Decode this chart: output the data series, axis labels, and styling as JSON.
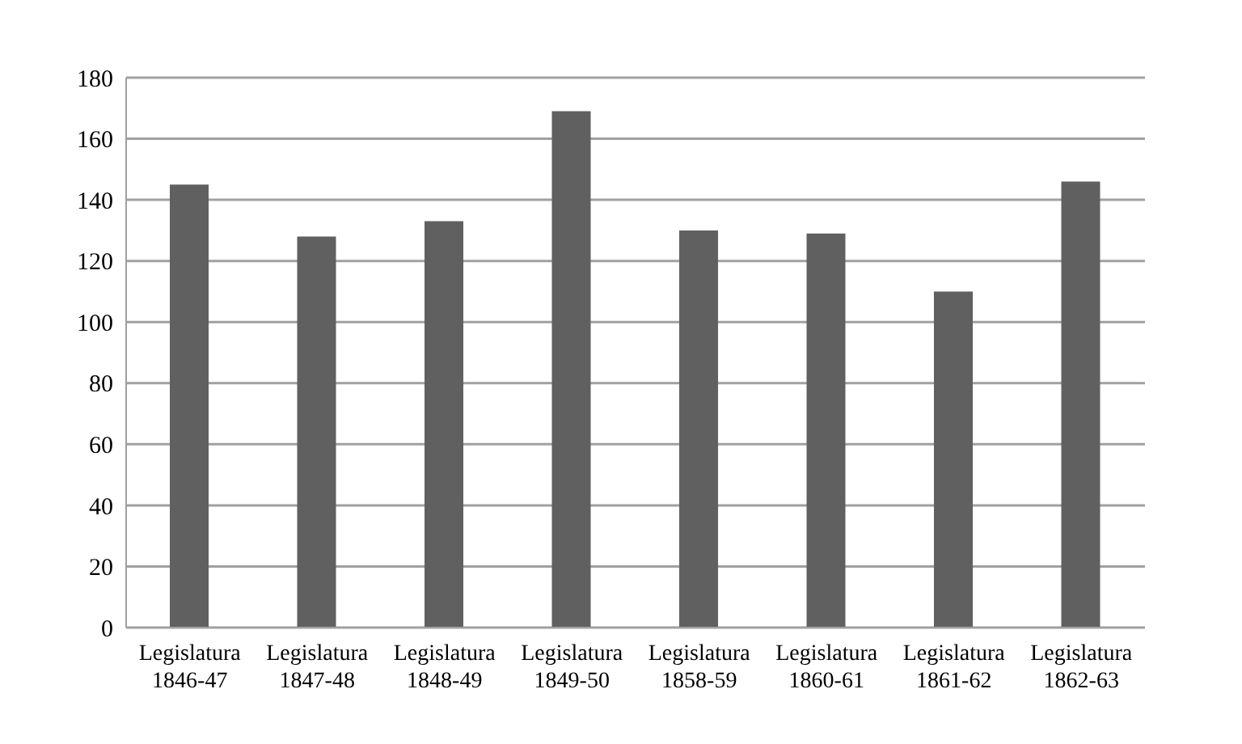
{
  "chart_data": {
    "type": "bar",
    "categories": [
      "Legislatura 1846-47",
      "Legislatura 1847-48",
      "Legislatura 1848-49",
      "Legislatura 1849-50",
      "Legislatura 1858-59",
      "Legislatura 1860-61",
      "Legislatura 1861-62",
      "Legislatura 1862-63"
    ],
    "values": [
      145,
      128,
      133,
      169,
      130,
      129,
      110,
      146
    ],
    "color": "#606060",
    "ylim": [
      0,
      180
    ],
    "yticks": [
      0,
      20,
      40,
      60,
      80,
      100,
      120,
      140,
      160,
      180
    ],
    "grid": "y"
  }
}
